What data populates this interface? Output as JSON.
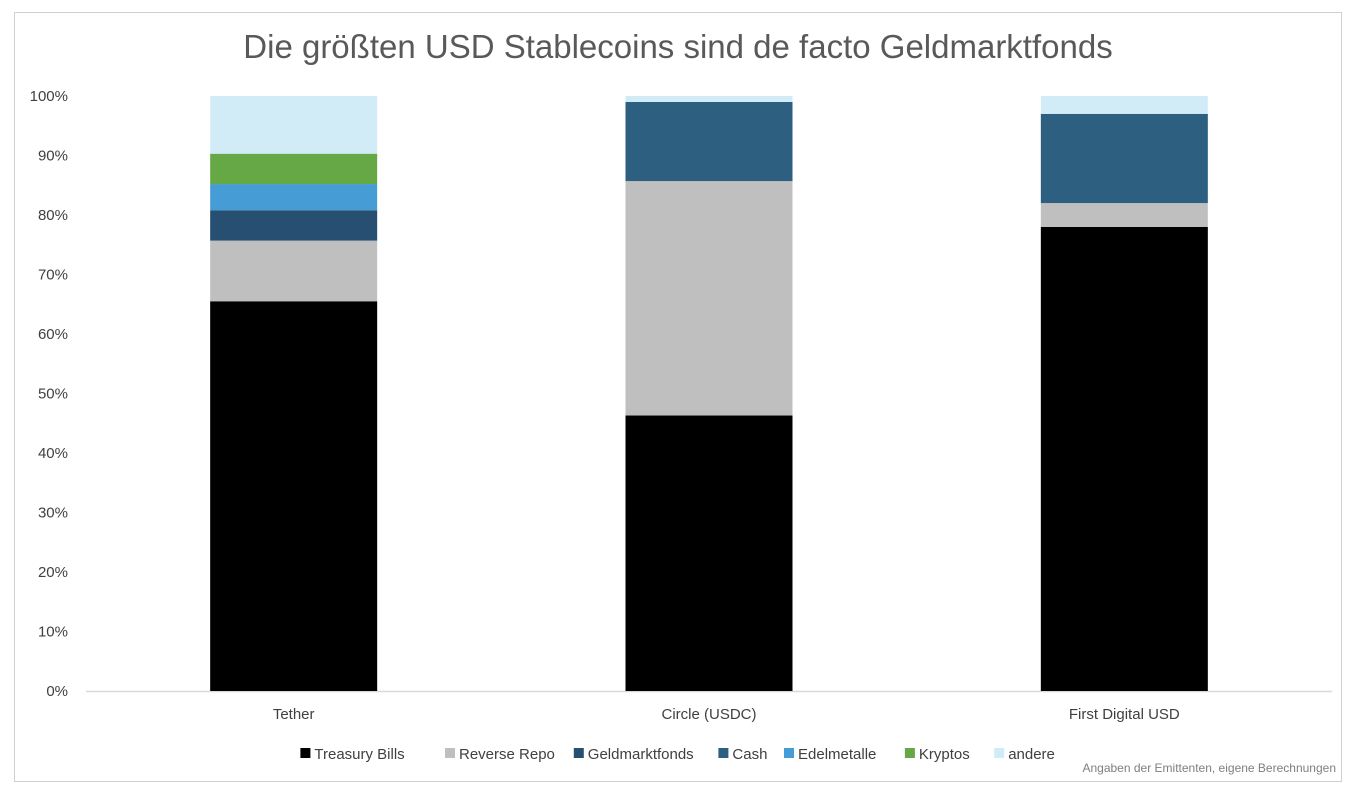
{
  "chart_data": {
    "type": "bar",
    "stacked": true,
    "title": "Die größten USD Stablecoins sind de facto Geldmarktfonds",
    "xlabel": "",
    "ylabel": "",
    "categories": [
      "Tether",
      "Circle (USDC)",
      "First Digital USD"
    ],
    "ylim": [
      0,
      100
    ],
    "yticks": [
      "0%",
      "10%",
      "20%",
      "30%",
      "40%",
      "50%",
      "60%",
      "70%",
      "80%",
      "90%",
      "100%"
    ],
    "grid": false,
    "legend_position": "bottom",
    "series": [
      {
        "name": "Treasury Bills",
        "color": "#000000",
        "values": [
          65.5,
          46.3,
          78.0
        ]
      },
      {
        "name": "Reverse Repo",
        "color": "#bfbfbf",
        "values": [
          10.2,
          39.4,
          4.0
        ]
      },
      {
        "name": "Geldmarktfonds",
        "color": "#264f72",
        "values": [
          5.1,
          0,
          0
        ]
      },
      {
        "name": "Cash",
        "color": "#2c5f80",
        "values": [
          0,
          13.3,
          15.0
        ]
      },
      {
        "name": "Edelmetalle",
        "color": "#469cd5",
        "values": [
          4.4,
          0,
          0
        ]
      },
      {
        "name": "Kryptos",
        "color": "#66a845",
        "values": [
          5.1,
          0,
          0
        ]
      },
      {
        "name": "andere",
        "color": "#d2ecf7",
        "values": [
          9.7,
          1.0,
          3.0
        ]
      }
    ],
    "source_note": "Angaben der Emittenten, eigene Berechnungen"
  }
}
